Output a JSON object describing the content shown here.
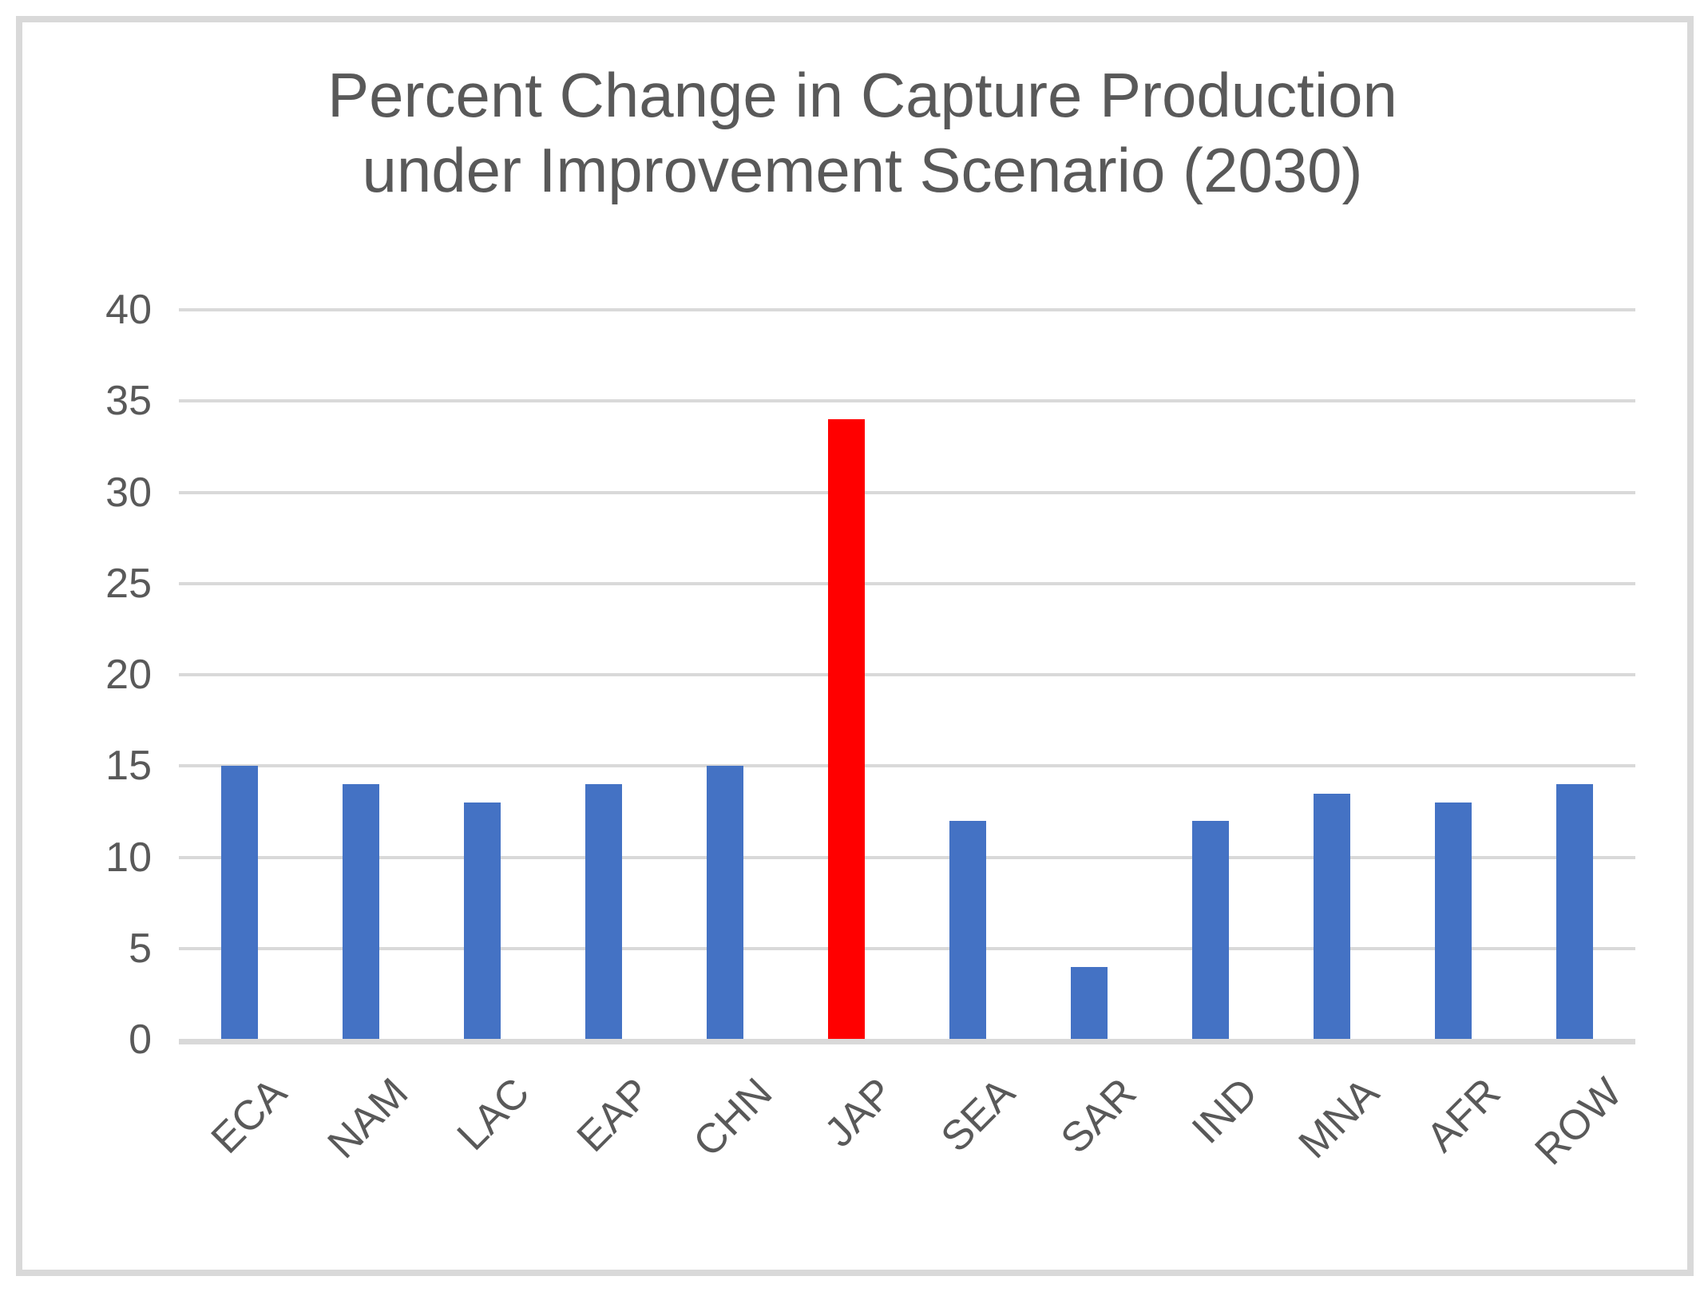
{
  "title": {
    "line1": "Percent Change in Capture Production",
    "line2": "under Improvement Scenario (2030)"
  },
  "chart_data": {
    "type": "bar",
    "title": "Percent Change in Capture Production under Improvement Scenario (2030)",
    "categories": [
      "ECA",
      "NAM",
      "LAC",
      "EAP",
      "CHN",
      "JAP",
      "SEA",
      "SAR",
      "IND",
      "MNA",
      "AFR",
      "ROW"
    ],
    "values": [
      15,
      14,
      13,
      14,
      15,
      34,
      12,
      4,
      12,
      13.5,
      13,
      14
    ],
    "bar_colors": [
      "#4472C4",
      "#4472C4",
      "#4472C4",
      "#4472C4",
      "#4472C4",
      "#FF0000",
      "#4472C4",
      "#4472C4",
      "#4472C4",
      "#4472C4",
      "#4472C4",
      "#4472C4"
    ],
    "highlight_category": "JAP",
    "xlabel": "",
    "ylabel": "",
    "ylim": [
      0,
      40
    ],
    "yticks": [
      0,
      5,
      10,
      15,
      20,
      25,
      30,
      35,
      40
    ],
    "grid": true,
    "legend": "none",
    "x_tick_rotation_deg": 45
  },
  "colors": {
    "bar_default": "#4472C4",
    "bar_highlight": "#FF0000",
    "gridline": "#D9D9D9",
    "axis_line": "#D9D9D9",
    "frame_border": "#D9D9D9",
    "text": "#595959",
    "background": "#FFFFFF"
  }
}
